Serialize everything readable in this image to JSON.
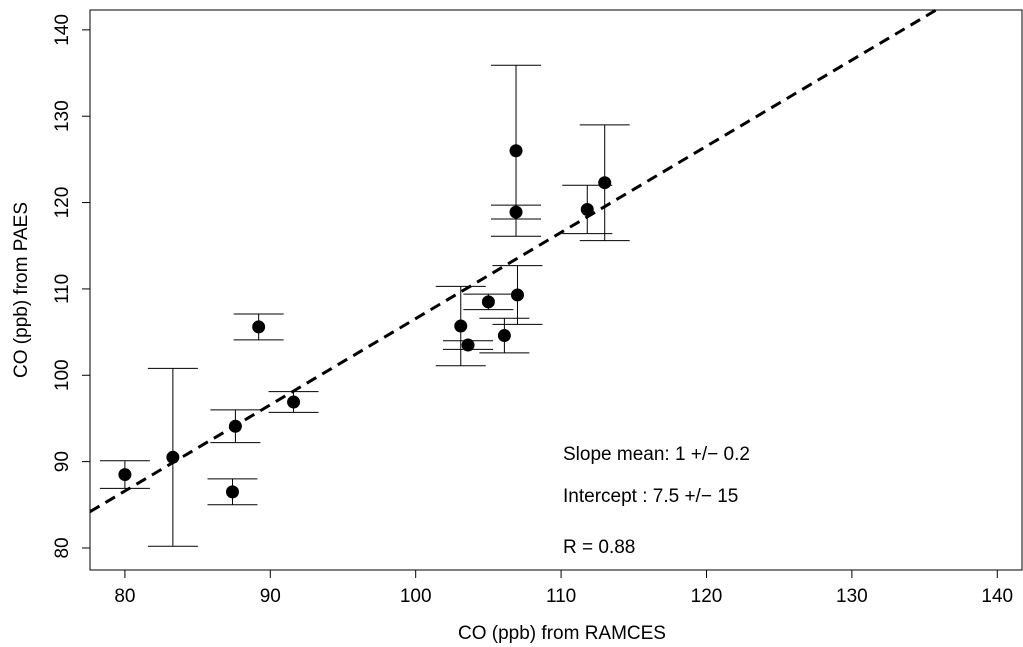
{
  "chart_data": {
    "type": "scatter",
    "xlabel": "CO (ppb) from RAMCES",
    "ylabel": "CO (ppb) from PAES",
    "x": [
      80,
      83.3,
      87.4,
      87.6,
      89.2,
      91.6,
      103.1,
      103.6,
      105.0,
      106.1,
      106.9,
      106.9,
      107.0,
      111.8,
      113.0
    ],
    "y": [
      88.5,
      90.5,
      86.5,
      94.1,
      105.6,
      96.9,
      105.7,
      103.5,
      108.5,
      104.6,
      126.0,
      118.9,
      109.3,
      119.2,
      122.3
    ],
    "yerr": [
      1.6,
      10.3,
      1.5,
      1.9,
      1.5,
      1.2,
      4.6,
      0.5,
      0.9,
      2.0,
      9.9,
      0.8,
      3.4,
      2.8,
      6.7
    ],
    "color": "#000000",
    "fit_line": {
      "x": [
        77.6,
        135.8
      ],
      "y": [
        84.2,
        142.3
      ]
    },
    "annotations": [
      "Slope mean:  1 +/− 0.2",
      "Intercept :  7.5 +/− 15",
      "R = 0.88"
    ],
    "xlim": [
      77.6,
      141.7
    ],
    "ylim": [
      77.45,
      142.3
    ],
    "xticks": [
      80,
      90,
      100,
      110,
      120,
      130,
      140
    ],
    "yticks": [
      80,
      90,
      100,
      110,
      120,
      130,
      140
    ]
  }
}
